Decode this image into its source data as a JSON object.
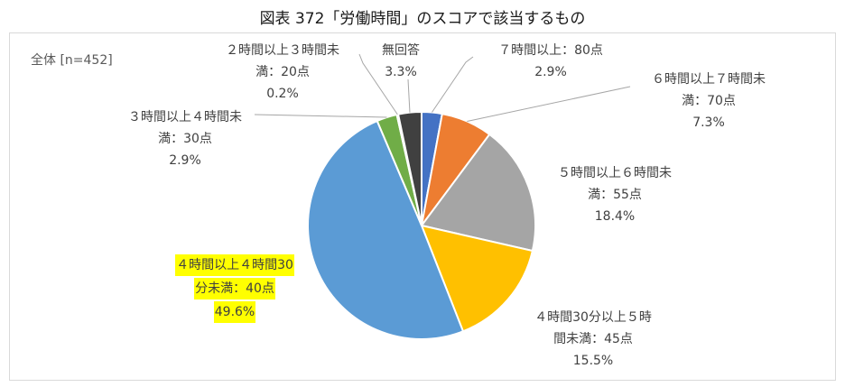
{
  "title": "図表 372「労働時間」のスコアで該当するもの",
  "sample_label": "全体 [n=452]",
  "chart_data": {
    "type": "pie",
    "title": "図表 372「労働時間」のスコアで該当するもの",
    "n_label": "全体 [n=452]",
    "start_angle_deg": 0,
    "direction": "clockwise",
    "slices": [
      {
        "label_line1": "７時間以上：80点",
        "label_line2": "",
        "pct_text": "2.9%",
        "value": 2.9,
        "color": "#4472c4"
      },
      {
        "label_line1": "６時間以上７時間未",
        "label_line2": "満：70点",
        "pct_text": "7.3%",
        "value": 7.3,
        "color": "#ed7d31"
      },
      {
        "label_line1": "５時間以上６時間未",
        "label_line2": "満：55点",
        "pct_text": "18.4%",
        "value": 18.4,
        "color": "#a5a5a5"
      },
      {
        "label_line1": "４時間30分以上５時",
        "label_line2": "間未満：45点",
        "pct_text": "15.5%",
        "value": 15.5,
        "color": "#ffc000"
      },
      {
        "label_line1": "４時間以上４時間30",
        "label_line2": "分未満：40点",
        "pct_text": "49.6%",
        "value": 49.6,
        "color": "#5b9bd5",
        "highlight": true
      },
      {
        "label_line1": "３時間以上４時間未",
        "label_line2": "満：30点",
        "pct_text": "2.9%",
        "value": 2.9,
        "color": "#70ad47"
      },
      {
        "label_line1": "２時間以上３時間未",
        "label_line2": "満：20点",
        "pct_text": "0.2%",
        "value": 0.2,
        "color": "#264478"
      },
      {
        "label_line1": "無回答",
        "label_line2": "",
        "pct_text": "3.3%",
        "value": 3.3,
        "color": "#404040"
      }
    ]
  }
}
